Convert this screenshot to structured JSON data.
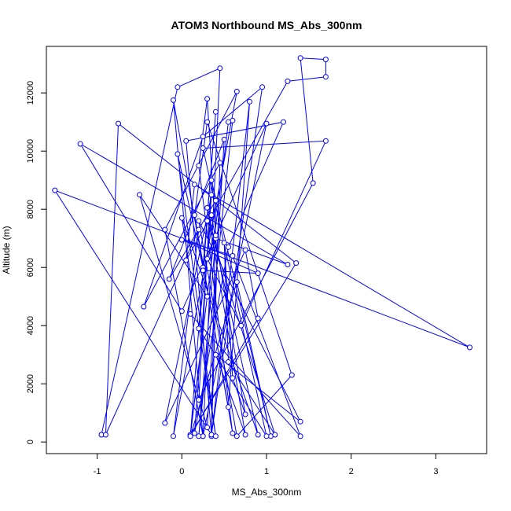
{
  "chart_data": {
    "type": "scatter",
    "title": "ATOM3 Northbound MS_Abs_300nm",
    "xlabel": "MS_Abs_300nm",
    "ylabel": "Altitude (m)",
    "xlim": [
      -1.6,
      3.6
    ],
    "ylim": [
      -400,
      13600
    ],
    "xticks": [
      -1,
      0,
      1,
      2,
      3
    ],
    "yticks": [
      0,
      2000,
      4000,
      6000,
      8000,
      10000,
      12000
    ],
    "grid": false,
    "line_color": "#0000ff",
    "marker": "open-circle",
    "series": [
      {
        "connected": true,
        "points": [
          [
            -0.95,
            250
          ],
          [
            -0.05,
            12200
          ],
          [
            0.45,
            12850
          ],
          [
            0.25,
            200
          ],
          [
            -0.1,
            11750
          ],
          [
            0.55,
            1200
          ],
          [
            0.8,
            11700
          ],
          [
            0.35,
            200
          ],
          [
            0.45,
            9600
          ],
          [
            -0.45,
            4650
          ],
          [
            0.25,
            10500
          ],
          [
            0.95,
            12200
          ],
          [
            0.35,
            250
          ],
          [
            0.4,
            8300
          ],
          [
            -0.15,
            5600
          ],
          [
            0.5,
            10400
          ],
          [
            0.3,
            500
          ],
          [
            -0.5,
            8500
          ],
          [
            0.3,
            5000
          ],
          [
            0.1,
            250
          ],
          [
            1.35,
            6150
          ],
          [
            -0.75,
            10950
          ],
          [
            -0.9,
            250
          ],
          [
            0.2,
            7300
          ],
          [
            -0.1,
            200
          ],
          [
            0.65,
            12050
          ],
          [
            -0.2,
            7300
          ],
          [
            0.25,
            200
          ],
          [
            1.0,
            10950
          ],
          [
            0.0,
            4500
          ],
          [
            -1.2,
            10250
          ],
          [
            1.25,
            6100
          ],
          [
            0.4,
            7000
          ],
          [
            0.2,
            200
          ],
          [
            0.6,
            11050
          ],
          [
            0.55,
            11000
          ],
          [
            0.1,
            200
          ],
          [
            0.9,
            4250
          ],
          [
            0.75,
            6600
          ],
          [
            -0.2,
            650
          ],
          [
            0.35,
            8500
          ],
          [
            0.15,
            300
          ],
          [
            0.55,
            6700
          ],
          [
            1.2,
            11000
          ],
          [
            0.05,
            10350
          ],
          [
            0.35,
            250
          ],
          [
            -1.5,
            8650
          ],
          [
            3.4,
            3250
          ],
          [
            0.15,
            8850
          ],
          [
            0.05,
            6250
          ],
          [
            1.25,
            12400
          ],
          [
            1.7,
            12550
          ],
          [
            1.7,
            13150
          ],
          [
            1.4,
            13200
          ],
          [
            1.55,
            8900
          ],
          [
            0.2,
            1450
          ],
          [
            0.35,
            9000
          ],
          [
            1.05,
            200
          ],
          [
            0.65,
            5500
          ],
          [
            0.1,
            200
          ],
          [
            0.3,
            7600
          ],
          [
            1.1,
            250
          ],
          [
            0.55,
            2750
          ],
          [
            0.5,
            6850
          ],
          [
            0.6,
            2200
          ],
          [
            0.75,
            950
          ],
          [
            0.35,
            7800
          ],
          [
            0.2,
            3900
          ],
          [
            1.0,
            200
          ],
          [
            0.25,
            10100
          ],
          [
            1.7,
            10350
          ],
          [
            0.7,
            4000
          ],
          [
            0.3,
            6300
          ],
          [
            0.4,
            7100
          ],
          [
            0.3,
            11800
          ],
          [
            0.2,
            9500
          ],
          [
            0.6,
            300
          ],
          [
            0.15,
            7800
          ],
          [
            0.3,
            11000
          ],
          [
            1.3,
            2300
          ],
          [
            0.65,
            200
          ],
          [
            0.2,
            7600
          ],
          [
            1.4,
            700
          ],
          [
            0.4,
            3000
          ],
          [
            0.75,
            250
          ],
          [
            0.3,
            8050
          ],
          [
            0.9,
            250
          ],
          [
            0.0,
            7700
          ],
          [
            0.4,
            200
          ],
          [
            -0.05,
            9900
          ],
          [
            0.25,
            6000
          ],
          [
            0.4,
            11350
          ],
          [
            0.25,
            5900
          ],
          [
            0.9,
            5800
          ],
          [
            0.0,
            6950
          ],
          [
            0.6,
            6400
          ],
          [
            1.4,
            200
          ],
          [
            0.1,
            4400
          ]
        ]
      }
    ]
  }
}
